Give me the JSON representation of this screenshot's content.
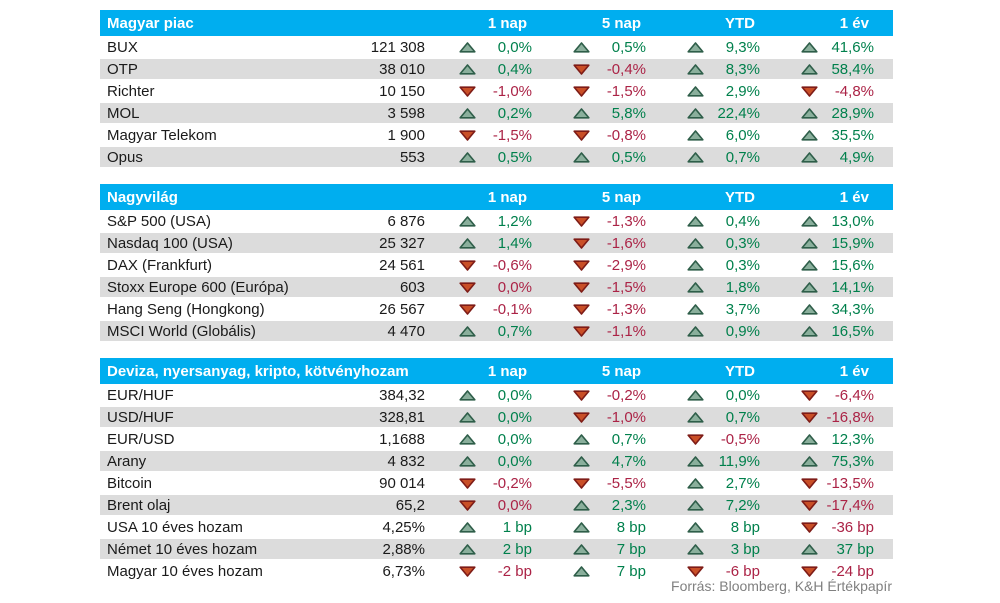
{
  "colors": {
    "header_bg": "#00AEEF",
    "row_alt_bg": "#DCDCDC",
    "up_text": "#00804C",
    "down_text": "#AB2346",
    "up_fill": "#8AAF9C",
    "up_stroke": "#2E5E49",
    "down_fill": "#C94F27",
    "down_stroke": "#7E1C17"
  },
  "chart_data": {
    "type": "table",
    "columns": [
      "1 nap",
      "5 nap",
      "YTD",
      "1 év"
    ],
    "source": "Forrás: Bloomberg, K&H Értékpapír",
    "tables": [
      {
        "title": "Magyar piac",
        "rows": [
          {
            "name": "BUX",
            "value": "121 308",
            "changes": [
              {
                "dir": "up",
                "text": "0,0%"
              },
              {
                "dir": "up",
                "text": "0,5%"
              },
              {
                "dir": "up",
                "text": "9,3%"
              },
              {
                "dir": "up",
                "text": "41,6%"
              }
            ]
          },
          {
            "name": "OTP",
            "value": "38 010",
            "changes": [
              {
                "dir": "up",
                "text": "0,4%"
              },
              {
                "dir": "down",
                "text": "-0,4%"
              },
              {
                "dir": "up",
                "text": "8,3%"
              },
              {
                "dir": "up",
                "text": "58,4%"
              }
            ]
          },
          {
            "name": "Richter",
            "value": "10 150",
            "changes": [
              {
                "dir": "down",
                "text": "-1,0%"
              },
              {
                "dir": "down",
                "text": "-1,5%"
              },
              {
                "dir": "up",
                "text": "2,9%"
              },
              {
                "dir": "down",
                "text": "-4,8%"
              }
            ]
          },
          {
            "name": "MOL",
            "value": "3 598",
            "changes": [
              {
                "dir": "up",
                "text": "0,2%"
              },
              {
                "dir": "up",
                "text": "5,8%"
              },
              {
                "dir": "up",
                "text": "22,4%"
              },
              {
                "dir": "up",
                "text": "28,9%"
              }
            ]
          },
          {
            "name": "Magyar Telekom",
            "value": "1 900",
            "changes": [
              {
                "dir": "down",
                "text": "-1,5%"
              },
              {
                "dir": "down",
                "text": "-0,8%"
              },
              {
                "dir": "up",
                "text": "6,0%"
              },
              {
                "dir": "up",
                "text": "35,5%"
              }
            ]
          },
          {
            "name": "Opus",
            "value": "553",
            "changes": [
              {
                "dir": "up",
                "text": "0,5%"
              },
              {
                "dir": "up",
                "text": "0,5%"
              },
              {
                "dir": "up",
                "text": "0,7%"
              },
              {
                "dir": "up",
                "text": "4,9%"
              }
            ]
          }
        ]
      },
      {
        "title": "Nagyvilág",
        "rows": [
          {
            "name": "S&P 500 (USA)",
            "value": "6 876",
            "changes": [
              {
                "dir": "up",
                "text": "1,2%"
              },
              {
                "dir": "down",
                "text": "-1,3%"
              },
              {
                "dir": "up",
                "text": "0,4%"
              },
              {
                "dir": "up",
                "text": "13,0%"
              }
            ]
          },
          {
            "name": "Nasdaq 100 (USA)",
            "value": "25 327",
            "changes": [
              {
                "dir": "up",
                "text": "1,4%"
              },
              {
                "dir": "down",
                "text": "-1,6%"
              },
              {
                "dir": "up",
                "text": "0,3%"
              },
              {
                "dir": "up",
                "text": "15,9%"
              }
            ]
          },
          {
            "name": "DAX (Frankfurt)",
            "value": "24 561",
            "changes": [
              {
                "dir": "down",
                "text": "-0,6%"
              },
              {
                "dir": "down",
                "text": "-2,9%"
              },
              {
                "dir": "up",
                "text": "0,3%"
              },
              {
                "dir": "up",
                "text": "15,6%"
              }
            ]
          },
          {
            "name": "Stoxx Europe 600 (Európa)",
            "value": "603",
            "changes": [
              {
                "dir": "down",
                "text": "0,0%"
              },
              {
                "dir": "down",
                "text": "-1,5%"
              },
              {
                "dir": "up",
                "text": "1,8%"
              },
              {
                "dir": "up",
                "text": "14,1%"
              }
            ]
          },
          {
            "name": "Hang Seng (Hongkong)",
            "value": "26 567",
            "changes": [
              {
                "dir": "down",
                "text": "-0,1%"
              },
              {
                "dir": "down",
                "text": "-1,3%"
              },
              {
                "dir": "up",
                "text": "3,7%"
              },
              {
                "dir": "up",
                "text": "34,3%"
              }
            ]
          },
          {
            "name": "MSCI World (Globális)",
            "value": "4 470",
            "changes": [
              {
                "dir": "up",
                "text": "0,7%"
              },
              {
                "dir": "down",
                "text": "-1,1%"
              },
              {
                "dir": "up",
                "text": "0,9%"
              },
              {
                "dir": "up",
                "text": "16,5%"
              }
            ]
          }
        ]
      },
      {
        "title": "Deviza, nyersanyag, kripto, kötvényhozam",
        "rows": [
          {
            "name": "EUR/HUF",
            "value": "384,32",
            "changes": [
              {
                "dir": "up",
                "text": "0,0%"
              },
              {
                "dir": "down",
                "text": "-0,2%"
              },
              {
                "dir": "up",
                "text": "0,0%"
              },
              {
                "dir": "down",
                "text": "-6,4%"
              }
            ]
          },
          {
            "name": "USD/HUF",
            "value": "328,81",
            "changes": [
              {
                "dir": "up",
                "text": "0,0%"
              },
              {
                "dir": "down",
                "text": "-1,0%"
              },
              {
                "dir": "up",
                "text": "0,7%"
              },
              {
                "dir": "down",
                "text": "-16,8%"
              }
            ]
          },
          {
            "name": "EUR/USD",
            "value": "1,1688",
            "changes": [
              {
                "dir": "up",
                "text": "0,0%"
              },
              {
                "dir": "up",
                "text": "0,7%"
              },
              {
                "dir": "down",
                "text": "-0,5%"
              },
              {
                "dir": "up",
                "text": "12,3%"
              }
            ]
          },
          {
            "name": "Arany",
            "value": "4 832",
            "changes": [
              {
                "dir": "up",
                "text": "0,0%"
              },
              {
                "dir": "up",
                "text": "4,7%"
              },
              {
                "dir": "up",
                "text": "11,9%"
              },
              {
                "dir": "up",
                "text": "75,3%"
              }
            ]
          },
          {
            "name": "Bitcoin",
            "value": "90 014",
            "changes": [
              {
                "dir": "down",
                "text": "-0,2%"
              },
              {
                "dir": "down",
                "text": "-5,5%"
              },
              {
                "dir": "up",
                "text": "2,7%"
              },
              {
                "dir": "down",
                "text": "-13,5%"
              }
            ]
          },
          {
            "name": "Brent olaj",
            "value": "65,2",
            "changes": [
              {
                "dir": "down",
                "text": "0,0%"
              },
              {
                "dir": "up",
                "text": "2,3%"
              },
              {
                "dir": "up",
                "text": "7,2%"
              },
              {
                "dir": "down",
                "text": "-17,4%"
              }
            ]
          },
          {
            "name": "USA 10 éves hozam",
            "value": "4,25%",
            "changes": [
              {
                "dir": "up",
                "text": "1 bp"
              },
              {
                "dir": "up",
                "text": "8 bp"
              },
              {
                "dir": "up",
                "text": "8 bp"
              },
              {
                "dir": "down",
                "text": "-36 bp"
              }
            ]
          },
          {
            "name": "Német 10 éves hozam",
            "value": "2,88%",
            "changes": [
              {
                "dir": "up",
                "text": "2 bp"
              },
              {
                "dir": "up",
                "text": "7 bp"
              },
              {
                "dir": "up",
                "text": "3 bp"
              },
              {
                "dir": "up",
                "text": "37 bp"
              }
            ]
          },
          {
            "name": "Magyar 10 éves hozam",
            "value": "6,73%",
            "changes": [
              {
                "dir": "down",
                "text": "-2 bp"
              },
              {
                "dir": "up",
                "text": "7 bp"
              },
              {
                "dir": "down",
                "text": "-6 bp"
              },
              {
                "dir": "down",
                "text": "-24 bp"
              }
            ]
          }
        ]
      }
    ]
  }
}
